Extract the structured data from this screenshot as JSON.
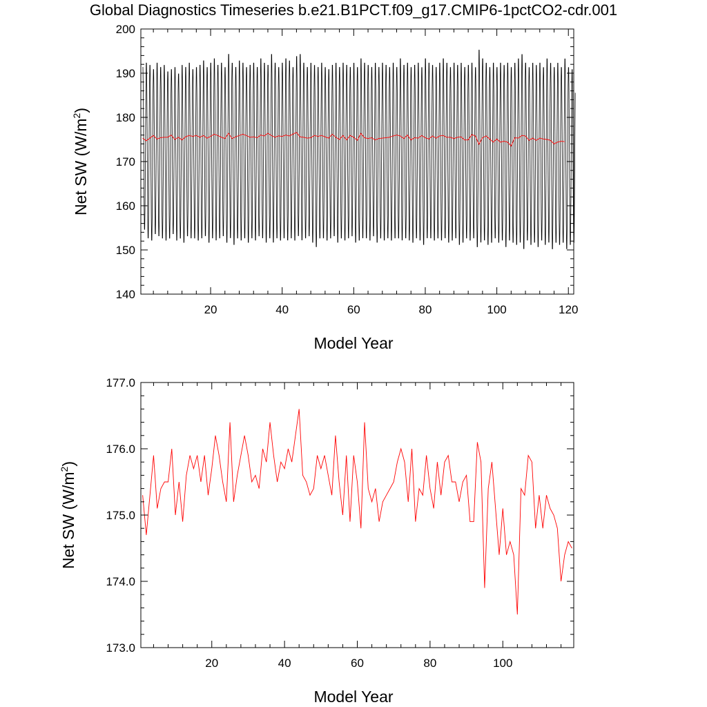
{
  "figure": {
    "title": "Global Diagnostics Timeseries b.e21.B1PCT.f09_g17.CMIP6-1pctCO2-cdr.001"
  },
  "chart_data": [
    {
      "type": "line",
      "title": "Global Diagnostics Timeseries b.e21.B1PCT.f09_g17.CMIP6-1pctCO2-cdr.001",
      "xlabel": "Model Year",
      "ylabel_main": "Net SW (W/m",
      "ylabel_sup": "2",
      "ylabel_end": ")",
      "xlim": [
        0.5,
        121.5
      ],
      "ylim": [
        140,
        200
      ],
      "xticks": [
        20,
        40,
        60,
        80,
        100,
        120
      ],
      "xtick_labels": [
        "20",
        "40",
        "60",
        "80",
        "100",
        "120"
      ],
      "yticks": [
        140,
        150,
        160,
        170,
        180,
        190,
        200
      ],
      "ytick_labels": [
        "140",
        "150",
        "160",
        "170",
        "180",
        "190",
        "200"
      ],
      "grid": false,
      "monthly_series": {
        "color": "#000000",
        "annual_max": [
          192.0,
          193.0,
          192.5,
          191.5,
          193.0,
          192.0,
          192.5,
          191.0,
          191.5,
          192.0,
          190.5,
          192.5,
          192.0,
          193.0,
          191.5,
          192.0,
          192.5,
          193.5,
          192.0,
          193.0,
          194.0,
          192.5,
          193.0,
          192.0,
          195.0,
          193.0,
          192.0,
          193.5,
          193.0,
          192.0,
          192.5,
          193.0,
          192.0,
          194.0,
          193.0,
          192.5,
          195.0,
          193.0,
          192.0,
          193.0,
          194.0,
          193.5,
          192.0,
          194.5,
          195.0,
          193.0,
          192.0,
          193.0,
          192.5,
          192.0,
          193.0,
          192.0,
          191.5,
          192.5,
          193.0,
          192.0,
          193.0,
          192.5,
          192.0,
          193.0,
          192.0,
          194.0,
          193.0,
          192.5,
          192.0,
          193.0,
          192.0,
          193.0,
          192.5,
          192.0,
          193.0,
          192.0,
          194.0,
          192.5,
          193.0,
          192.0,
          192.5,
          193.0,
          192.0,
          194.0,
          193.0,
          192.5,
          192.0,
          193.0,
          194.0,
          193.0,
          192.0,
          193.0,
          192.5,
          193.0,
          192.0,
          192.5,
          193.0,
          192.0,
          196.0,
          194.0,
          193.0,
          192.0,
          193.0,
          192.0,
          193.0,
          192.5,
          193.0,
          192.0,
          193.0,
          194.0,
          195.0,
          193.0,
          192.0,
          193.0,
          192.5,
          193.0,
          192.0,
          194.0,
          193.0,
          192.0,
          193.0,
          192.0,
          194.0,
          192.0,
          191.5
        ],
        "annual_min": [
          154.0,
          152.0,
          151.5,
          153.0,
          152.5,
          152.0,
          151.5,
          152.0,
          153.0,
          151.5,
          152.0,
          151.0,
          152.5,
          152.0,
          152.0,
          151.5,
          152.0,
          152.5,
          151.0,
          152.0,
          151.5,
          152.0,
          152.5,
          151.0,
          152.0,
          150.5,
          152.0,
          151.5,
          152.0,
          151.0,
          152.0,
          151.5,
          152.5,
          152.0,
          151.0,
          152.0,
          151.0,
          152.0,
          151.5,
          152.0,
          151.5,
          152.0,
          151.5,
          152.5,
          151.5,
          152.0,
          152.5,
          151.0,
          150.0,
          152.0,
          152.0,
          151.5,
          152.0,
          152.5,
          151.0,
          152.0,
          151.5,
          152.0,
          152.5,
          151.0,
          151.5,
          152.0,
          152.0,
          151.5,
          152.5,
          151.0,
          152.0,
          151.5,
          152.0,
          151.5,
          152.0,
          152.0,
          151.5,
          152.0,
          151.5,
          151.0,
          152.0,
          151.5,
          150.5,
          152.0,
          152.0,
          151.5,
          152.0,
          151.5,
          152.0,
          151.0,
          151.5,
          152.0,
          150.5,
          151.0,
          152.0,
          151.5,
          152.0,
          150.0,
          151.0,
          151.5,
          150.5,
          151.0,
          152.0,
          151.0,
          151.5,
          150.0,
          151.5,
          151.0,
          150.5,
          151.0,
          149.5,
          151.5,
          150.5,
          151.0,
          150.0,
          151.5,
          150.5,
          151.0,
          149.5,
          151.0,
          150.5,
          151.0,
          149.5,
          150.5,
          151.0
        ]
      },
      "annual_series": {
        "color": "#ff0000",
        "x": [
          1,
          2,
          3,
          4,
          5,
          6,
          7,
          8,
          9,
          10,
          11,
          12,
          13,
          14,
          15,
          16,
          17,
          18,
          19,
          20,
          21,
          22,
          23,
          24,
          25,
          26,
          27,
          28,
          29,
          30,
          31,
          32,
          33,
          34,
          35,
          36,
          37,
          38,
          39,
          40,
          41,
          42,
          43,
          44,
          45,
          46,
          47,
          48,
          49,
          50,
          51,
          52,
          53,
          54,
          55,
          56,
          57,
          58,
          59,
          60,
          61,
          62,
          63,
          64,
          65,
          66,
          67,
          68,
          69,
          70,
          71,
          72,
          73,
          74,
          75,
          76,
          77,
          78,
          79,
          80,
          81,
          82,
          83,
          84,
          85,
          86,
          87,
          88,
          89,
          90,
          91,
          92,
          93,
          94,
          95,
          96,
          97,
          98,
          99,
          100,
          101,
          102,
          103,
          104,
          105,
          106,
          107,
          108,
          109,
          110,
          111,
          112,
          113,
          114,
          115,
          116,
          117,
          118,
          119
        ],
        "values": [
          175.3,
          174.7,
          175.3,
          175.9,
          175.1,
          175.4,
          175.5,
          175.5,
          176.0,
          175.0,
          175.5,
          174.9,
          175.6,
          175.9,
          175.7,
          175.9,
          175.5,
          175.9,
          175.3,
          175.7,
          176.2,
          175.9,
          175.5,
          175.2,
          176.4,
          175.2,
          175.6,
          175.9,
          176.2,
          175.9,
          175.5,
          175.6,
          175.4,
          176.0,
          175.8,
          176.4,
          175.9,
          175.5,
          175.8,
          175.7,
          176.0,
          175.8,
          176.2,
          176.6,
          175.6,
          175.5,
          175.3,
          175.4,
          175.9,
          175.7,
          175.9,
          175.6,
          175.3,
          176.2,
          175.5,
          175.0,
          175.9,
          174.9,
          175.9,
          175.5,
          174.8,
          176.4,
          175.4,
          175.2,
          175.4,
          174.9,
          175.2,
          175.3,
          175.4,
          175.5,
          175.8,
          176.0,
          175.8,
          175.2,
          176.0,
          174.9,
          175.4,
          175.3,
          175.9,
          175.4,
          175.1,
          175.8,
          175.3,
          175.8,
          175.9,
          175.5,
          175.5,
          175.2,
          175.5,
          175.6,
          174.9,
          174.9,
          176.1,
          175.8,
          173.9,
          175.4,
          175.8,
          175.1,
          174.4,
          175.1,
          174.4,
          174.6,
          174.4,
          173.5,
          175.4,
          175.3,
          175.9,
          175.8,
          174.8,
          175.3,
          174.8,
          175.3,
          175.1,
          175.0,
          174.8,
          174.0,
          174.4,
          174.6,
          174.5
        ]
      }
    },
    {
      "type": "line",
      "xlabel": "Model Year",
      "ylabel_main": "Net SW (W/m",
      "ylabel_sup": "2",
      "ylabel_end": ")",
      "xlim": [
        0.5,
        119.5
      ],
      "ylim": [
        173.0,
        177.0
      ],
      "xticks": [
        20,
        40,
        60,
        80,
        100
      ],
      "xtick_labels": [
        "20",
        "40",
        "60",
        "80",
        "100"
      ],
      "yticks": [
        173.0,
        174.0,
        175.0,
        176.0,
        177.0
      ],
      "ytick_labels": [
        "173.0",
        "174.0",
        "175.0",
        "176.0",
        "177.0"
      ],
      "grid": false,
      "series": [
        {
          "color": "#ff0000",
          "x": [
            1,
            2,
            3,
            4,
            5,
            6,
            7,
            8,
            9,
            10,
            11,
            12,
            13,
            14,
            15,
            16,
            17,
            18,
            19,
            20,
            21,
            22,
            23,
            24,
            25,
            26,
            27,
            28,
            29,
            30,
            31,
            32,
            33,
            34,
            35,
            36,
            37,
            38,
            39,
            40,
            41,
            42,
            43,
            44,
            45,
            46,
            47,
            48,
            49,
            50,
            51,
            52,
            53,
            54,
            55,
            56,
            57,
            58,
            59,
            60,
            61,
            62,
            63,
            64,
            65,
            66,
            67,
            68,
            69,
            70,
            71,
            72,
            73,
            74,
            75,
            76,
            77,
            78,
            79,
            80,
            81,
            82,
            83,
            84,
            85,
            86,
            87,
            88,
            89,
            90,
            91,
            92,
            93,
            94,
            95,
            96,
            97,
            98,
            99,
            100,
            101,
            102,
            103,
            104,
            105,
            106,
            107,
            108,
            109,
            110,
            111,
            112,
            113,
            114,
            115,
            116,
            117,
            118,
            119
          ],
          "values": [
            175.3,
            174.7,
            175.3,
            175.9,
            175.1,
            175.4,
            175.5,
            175.5,
            176.0,
            175.0,
            175.5,
            174.9,
            175.6,
            175.9,
            175.7,
            175.9,
            175.5,
            175.9,
            175.3,
            175.7,
            176.2,
            175.9,
            175.5,
            175.2,
            176.4,
            175.2,
            175.6,
            175.9,
            176.2,
            175.9,
            175.5,
            175.6,
            175.4,
            176.0,
            175.8,
            176.4,
            175.9,
            175.5,
            175.8,
            175.7,
            176.0,
            175.8,
            176.2,
            176.6,
            175.6,
            175.5,
            175.3,
            175.4,
            175.9,
            175.7,
            175.9,
            175.6,
            175.3,
            176.2,
            175.5,
            175.0,
            175.9,
            174.9,
            175.9,
            175.5,
            174.8,
            176.4,
            175.4,
            175.2,
            175.4,
            174.9,
            175.2,
            175.3,
            175.4,
            175.5,
            175.8,
            176.0,
            175.8,
            175.2,
            176.0,
            174.9,
            175.4,
            175.3,
            175.9,
            175.4,
            175.1,
            175.8,
            175.3,
            175.8,
            175.9,
            175.5,
            175.5,
            175.2,
            175.5,
            175.6,
            174.9,
            174.9,
            176.1,
            175.8,
            173.9,
            175.4,
            175.8,
            175.1,
            174.4,
            175.1,
            174.4,
            174.6,
            174.4,
            173.5,
            175.4,
            175.3,
            175.9,
            175.8,
            174.8,
            175.3,
            174.8,
            175.3,
            175.1,
            175.0,
            174.8,
            174.0,
            174.4,
            174.6,
            174.5
          ]
        }
      ]
    }
  ]
}
